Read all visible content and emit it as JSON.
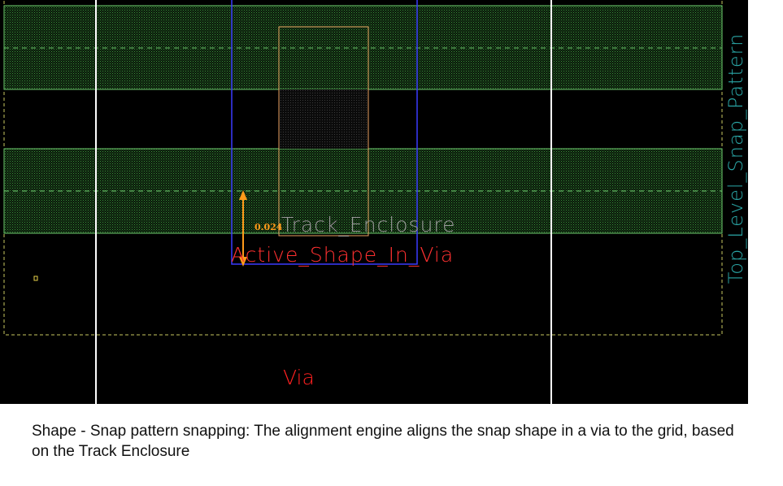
{
  "labels": {
    "track_enclosure": "Track_Enclosure",
    "active_shape": "Active_Shape_In_Via",
    "dimension": "0.024",
    "via": "Via",
    "snap_pattern": "Top_Level_Snap_Pattern"
  },
  "caption": "Shape - Snap pattern snapping: The alignment engine aligns the snap shape in a via to the grid, based on the Track Enclosure",
  "colors": {
    "canvas_background": "#000000",
    "track_fill": "#2f7d2f",
    "track_boundary": "#6fcf6f",
    "pattern_boundary": "#c8c860",
    "grid_line": "#ffffff",
    "via_outline": "#3a3aff",
    "enclosure_outline": "#e8a060",
    "ruler": "#ff9a1a",
    "track_label": "#9a9a9a",
    "active_label": "#ff3030",
    "via_label": "#ff2020",
    "pattern_label": "#2aa6a6"
  }
}
